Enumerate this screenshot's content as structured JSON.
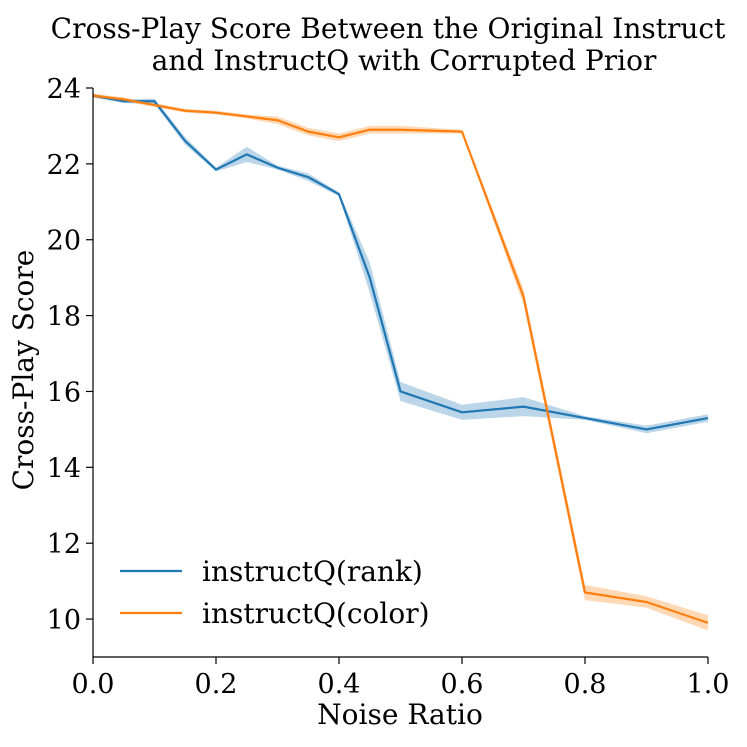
{
  "chart_data": {
    "type": "line",
    "title_lines": [
      "Cross-Play Score Between the Original Instruct",
      "and InstructQ with Corrupted Prior"
    ],
    "xlabel": "Noise Ratio",
    "ylabel": "Cross-Play Score",
    "xlim": [
      0.0,
      1.0
    ],
    "ylim": [
      9.0,
      24.0
    ],
    "x_ticks": [
      0.0,
      0.2,
      0.4,
      0.6,
      0.8,
      1.0
    ],
    "x_tick_labels": [
      "0.0",
      "0.2",
      "0.4",
      "0.6",
      "0.8",
      "1.0"
    ],
    "y_ticks": [
      10,
      12,
      14,
      16,
      18,
      20,
      22,
      24
    ],
    "y_tick_labels": [
      "10",
      "12",
      "14",
      "16",
      "18",
      "20",
      "22",
      "24"
    ],
    "grid": false,
    "legend_position": "lower-left",
    "series": [
      {
        "name": "instructQ(rank)",
        "color": "#1f77b4",
        "x": [
          0.0,
          0.05,
          0.1,
          0.15,
          0.2,
          0.25,
          0.3,
          0.35,
          0.4,
          0.45,
          0.5,
          0.6,
          0.7,
          0.8,
          0.9,
          1.0
        ],
        "y": [
          23.8,
          23.65,
          23.65,
          22.6,
          21.85,
          22.25,
          21.9,
          21.65,
          21.2,
          19.0,
          16.0,
          15.45,
          15.6,
          15.3,
          15.0,
          15.3
        ],
        "y_low": [
          23.75,
          23.6,
          23.58,
          22.5,
          21.8,
          22.05,
          21.85,
          21.55,
          21.15,
          18.6,
          15.75,
          15.25,
          15.35,
          15.25,
          14.9,
          15.2
        ],
        "y_high": [
          23.85,
          23.7,
          23.72,
          22.7,
          21.9,
          22.45,
          21.95,
          21.75,
          21.25,
          19.4,
          16.25,
          15.65,
          15.85,
          15.35,
          15.1,
          15.4
        ]
      },
      {
        "name": "instructQ(color)",
        "color": "#ff7f0e",
        "x": [
          0.0,
          0.05,
          0.1,
          0.15,
          0.2,
          0.25,
          0.3,
          0.35,
          0.4,
          0.45,
          0.5,
          0.6,
          0.7,
          0.8,
          0.9,
          1.0
        ],
        "y": [
          23.8,
          23.7,
          23.55,
          23.4,
          23.35,
          23.25,
          23.15,
          22.85,
          22.7,
          22.9,
          22.9,
          22.85,
          18.5,
          10.7,
          10.45,
          9.9
        ],
        "y_low": [
          23.75,
          23.65,
          23.5,
          23.35,
          23.3,
          23.2,
          23.05,
          22.75,
          22.6,
          22.8,
          22.8,
          22.8,
          18.3,
          10.5,
          10.3,
          9.7
        ],
        "y_high": [
          23.85,
          23.75,
          23.6,
          23.45,
          23.4,
          23.3,
          23.25,
          22.95,
          22.8,
          23.0,
          23.0,
          22.9,
          18.7,
          10.9,
          10.6,
          10.1
        ]
      }
    ]
  }
}
